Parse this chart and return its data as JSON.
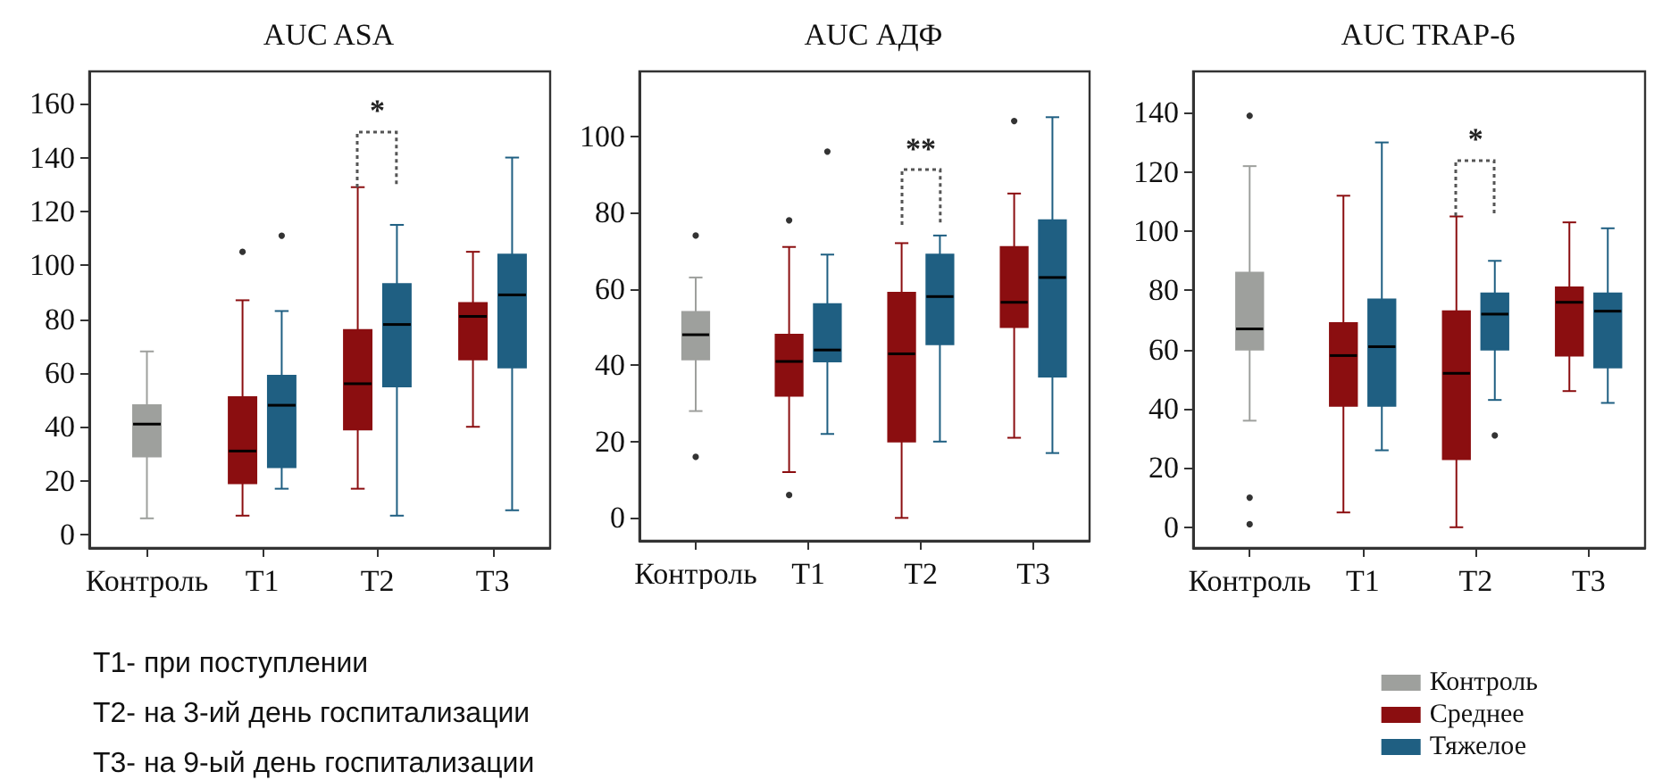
{
  "chart_data": [
    {
      "type": "box",
      "title": "AUC ASA",
      "categories": [
        "Контроль",
        "T1",
        "T2",
        "T3"
      ],
      "ylim": [
        -5,
        172
      ],
      "yticks": [
        0,
        20,
        40,
        60,
        80,
        100,
        120,
        140,
        160
      ],
      "legend": false,
      "series": [
        {
          "color": "#9ea09d",
          "boxes": [
            {
              "low": 6,
              "q1": 29,
              "median": 41,
              "q3": 48,
              "high": 68
            },
            null,
            null,
            null
          ]
        },
        {
          "color": "#8b0e10",
          "boxes": [
            null,
            {
              "low": 7,
              "q1": 19,
              "median": 31,
              "q3": 51,
              "high": 87,
              "outliers": [
                105
              ]
            },
            {
              "low": 17,
              "q1": 39,
              "median": 56,
              "q3": 76,
              "high": 129
            },
            {
              "low": 40,
              "q1": 65,
              "median": 81,
              "q3": 86,
              "high": 105
            }
          ]
        },
        {
          "color": "#1f5f82",
          "boxes": [
            null,
            {
              "low": 17,
              "q1": 25,
              "median": 48,
              "q3": 59,
              "high": 83,
              "outliers": [
                111
              ]
            },
            {
              "low": 7,
              "q1": 55,
              "median": 78,
              "q3": 93,
              "high": 115
            },
            {
              "low": 9,
              "q1": 62,
              "median": 89,
              "q3": 104,
              "high": 140
            }
          ]
        }
      ],
      "annotations": [
        "*",
        "T1- при поступлении",
        "T2- на 3-ий день госпитализации",
        "T3- на 9-ый день госпитализации"
      ]
    },
    {
      "type": "box",
      "title": "AUC АДФ",
      "categories": [
        "Контроль",
        "T1",
        "T2",
        "T3"
      ],
      "ylim": [
        -6,
        117
      ],
      "yticks": [
        0,
        20,
        40,
        60,
        80,
        100
      ],
      "legend": false,
      "series": [
        {
          "color": "#9ea09d",
          "boxes": [
            {
              "low": 28,
              "q1": 41.5,
              "median": 48,
              "q3": 54,
              "high": 63,
              "outliers": [
                74,
                16
              ]
            },
            null,
            null,
            null
          ]
        },
        {
          "color": "#8b0e10",
          "boxes": [
            null,
            {
              "low": 12,
              "q1": 32,
              "median": 41,
              "q3": 48,
              "high": 71,
              "outliers": [
                78,
                6
              ]
            },
            {
              "low": 0,
              "q1": 20,
              "median": 43,
              "q3": 59,
              "high": 72
            },
            {
              "low": 21,
              "q1": 50,
              "median": 56.5,
              "q3": 71,
              "high": 85,
              "outliers": [
                104
              ]
            }
          ]
        },
        {
          "color": "#1f5f82",
          "boxes": [
            null,
            {
              "low": 22,
              "q1": 41,
              "median": 44,
              "q3": 56,
              "high": 69,
              "outliers": [
                96
              ]
            },
            {
              "low": 20,
              "q1": 45.5,
              "median": 58,
              "q3": 69,
              "high": 74
            },
            {
              "low": 17,
              "q1": 37,
              "median": 63,
              "q3": 78,
              "high": 105
            }
          ]
        }
      ],
      "annotations": [
        "**"
      ]
    },
    {
      "type": "box",
      "title": "AUC TRAP-6",
      "categories": [
        "Контроль",
        "T1",
        "T2",
        "T3"
      ],
      "ylim": [
        -7,
        154
      ],
      "yticks": [
        0,
        20,
        40,
        60,
        80,
        100,
        120,
        140
      ],
      "legend": "bottom right",
      "series": [
        {
          "name": "Контроль",
          "color": "#9ea09d",
          "boxes": [
            {
              "low": 36,
              "q1": 60,
              "median": 67,
              "q3": 86,
              "high": 122,
              "outliers": [
                139,
                10,
                1
              ]
            },
            null,
            null,
            null
          ]
        },
        {
          "name": "Среднее",
          "color": "#8b0e10",
          "boxes": [
            null,
            {
              "low": 5,
              "q1": 41,
              "median": 58,
              "q3": 69,
              "high": 112
            },
            {
              "low": 0,
              "q1": 23,
              "median": 52,
              "q3": 73,
              "high": 105
            },
            {
              "low": 46,
              "q1": 58,
              "median": 76,
              "q3": 81,
              "high": 103
            }
          ]
        },
        {
          "name": "Тяжелое",
          "color": "#1f5f82",
          "boxes": [
            null,
            {
              "low": 26,
              "q1": 41,
              "median": 61,
              "q3": 77,
              "high": 130
            },
            {
              "low": 43,
              "q1": 60,
              "median": 72,
              "q3": 79,
              "high": 90,
              "outliers": [
                31
              ]
            },
            {
              "low": 42,
              "q1": 54,
              "median": 73,
              "q3": 79,
              "high": 101
            }
          ]
        }
      ],
      "annotations": [
        "*"
      ]
    }
  ]
}
